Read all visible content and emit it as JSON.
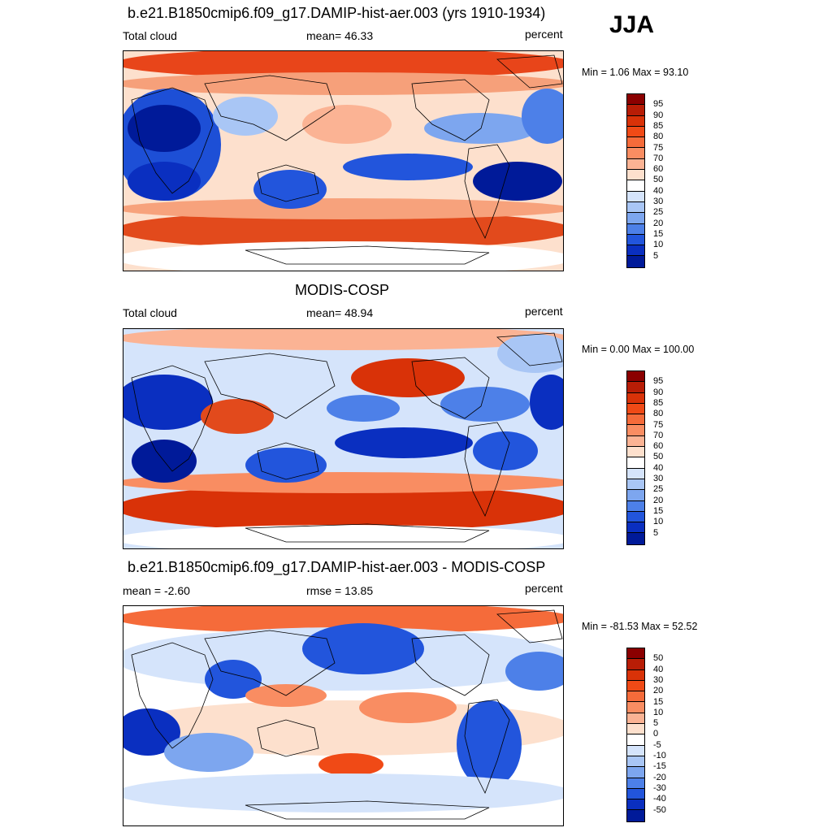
{
  "season": "JJA",
  "panels": [
    {
      "title": "b.e21.B1850cmip6.f09_g17.DAMIP-hist-aer.003 (yrs 1910-1934)",
      "left_label": "Total cloud",
      "center_label": "mean=  46.33",
      "right_label": "percent",
      "minmax": "Min =   1.06 Max =  93.10",
      "colorbar": {
        "labels": [
          "95",
          "90",
          "85",
          "80",
          "75",
          "70",
          "60",
          "50",
          "40",
          "30",
          "25",
          "20",
          "15",
          "10",
          "5"
        ],
        "colors": [
          "#8b0000",
          "#b81d06",
          "#d93208",
          "#f04a16",
          "#f56b3a",
          "#f98d62",
          "#fbb394",
          "#fde0cd",
          "#ffffff",
          "#d5e4fb",
          "#a9c6f5",
          "#7da6ef",
          "#4d80e8",
          "#2255dc",
          "#0a2fc0",
          "#001a99"
        ]
      }
    },
    {
      "title": "MODIS-COSP",
      "left_label": "Total cloud",
      "center_label": "mean=  48.94",
      "right_label": "percent",
      "minmax": "Min =   0.00 Max = 100.00",
      "colorbar": {
        "labels": [
          "95",
          "90",
          "85",
          "80",
          "75",
          "70",
          "60",
          "50",
          "40",
          "30",
          "25",
          "20",
          "15",
          "10",
          "5"
        ],
        "colors": [
          "#8b0000",
          "#b81d06",
          "#d93208",
          "#f04a16",
          "#f56b3a",
          "#f98d62",
          "#fbb394",
          "#fde0cd",
          "#ffffff",
          "#d5e4fb",
          "#a9c6f5",
          "#7da6ef",
          "#4d80e8",
          "#2255dc",
          "#0a2fc0",
          "#001a99"
        ]
      }
    },
    {
      "title": "b.e21.B1850cmip6.f09_g17.DAMIP-hist-aer.003 - MODIS-COSP",
      "left_label": "mean =  -2.60",
      "center_label": "rmse =  13.85",
      "right_label": "percent",
      "minmax": "Min = -81.53 Max =  52.52",
      "colorbar": {
        "labels": [
          "50",
          "40",
          "30",
          "20",
          "15",
          "10",
          "5",
          "0",
          "-5",
          "-10",
          "-15",
          "-20",
          "-30",
          "-40",
          "-50"
        ],
        "colors": [
          "#8b0000",
          "#b81d06",
          "#d93208",
          "#f04a16",
          "#f56b3a",
          "#f98d62",
          "#fbb394",
          "#fde0cd",
          "#ffffff",
          "#d5e4fb",
          "#a9c6f5",
          "#7da6ef",
          "#4d80e8",
          "#2255dc",
          "#0a2fc0",
          "#001a99"
        ]
      }
    }
  ]
}
